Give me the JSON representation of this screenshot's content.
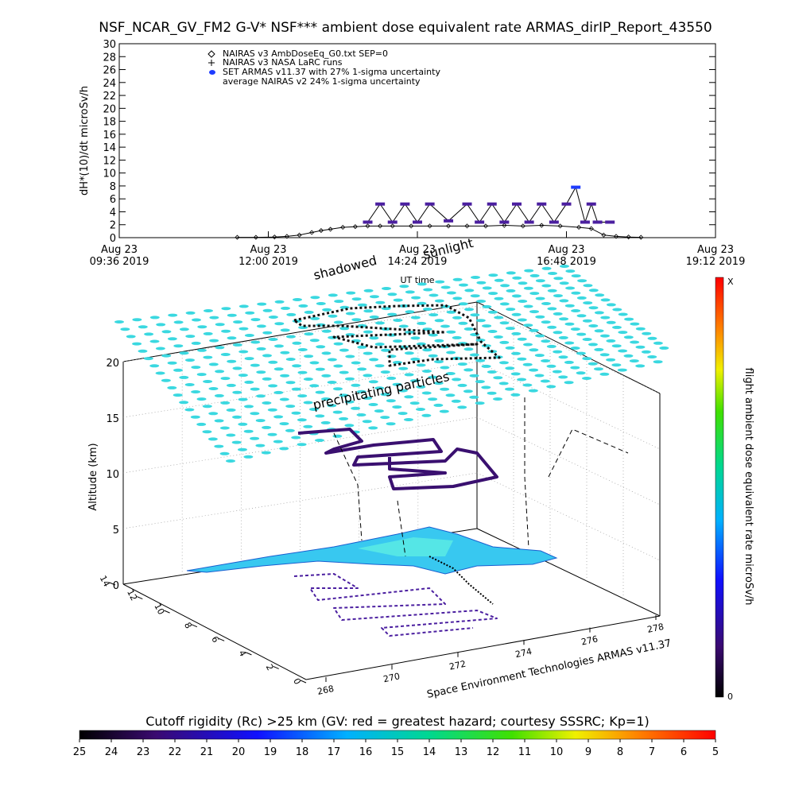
{
  "title": "NSF_NCAR_GV_FM2 G-V* NSF*** ambient dose equivalent rate ARMAS_dirIP_Report_43550",
  "colors": {
    "armas_marker": "#4b1fa0",
    "armas_high": "#1e3cff",
    "nairas_line": "#000000",
    "cyan_layer": "#3ad8e0",
    "track_dark": "#22103a"
  },
  "chart_data": [
    {
      "type": "line",
      "panel": "time-series",
      "ylabel": "dH*(10)/dt microSv/h",
      "xlabel": "UT time",
      "ylim": [
        0,
        30
      ],
      "yticks": [
        0,
        2,
        4,
        6,
        8,
        10,
        12,
        14,
        16,
        18,
        20,
        22,
        24,
        26,
        28,
        30
      ],
      "xlim_hours": [
        9.6,
        19.2
      ],
      "xtick_lines": [
        [
          "Aug 23",
          "09:36 2019"
        ],
        [
          "Aug 23",
          "12:00 2019"
        ],
        [
          "Aug 23",
          "14:24 2019"
        ],
        [
          "Aug 23",
          "16:48 2019"
        ],
        [
          "Aug 23",
          "19:12 2019"
        ]
      ],
      "xtick_hours": [
        9.6,
        12.0,
        14.4,
        16.8,
        19.2
      ],
      "legend": [
        {
          "symbol": "diamond",
          "label": "NAIRAS v3 AmbDoseEq_G0.txt SEP=0"
        },
        {
          "symbol": "plus",
          "label": "NAIRAS v3 NASA LaRC runs"
        },
        {
          "symbol": "dot",
          "label": "SET ARMAS v11.37 with 27% 1-sigma uncertainty"
        },
        {
          "symbol": "none",
          "label": "average NAIRAS v2 24% 1-sigma uncertainty"
        }
      ],
      "series": [
        {
          "name": "NAIRAS v3 AmbDoseEq_G0.txt SEP=0",
          "x": [
            11.5,
            11.8,
            12.1,
            12.3,
            12.5,
            12.7,
            12.85,
            13.0,
            13.2,
            13.4,
            13.6,
            13.8,
            14.0,
            14.3,
            14.6,
            14.9,
            15.2,
            15.5,
            15.8,
            16.1,
            16.4,
            16.7,
            17.0,
            17.2,
            17.4,
            17.6,
            17.8,
            18.0
          ],
          "y": [
            0.05,
            0.05,
            0.1,
            0.2,
            0.4,
            0.8,
            1.1,
            1.3,
            1.6,
            1.7,
            1.8,
            1.8,
            1.8,
            1.8,
            1.8,
            1.8,
            1.8,
            1.8,
            1.9,
            1.8,
            1.9,
            1.8,
            1.6,
            1.4,
            0.4,
            0.2,
            0.1,
            0.05
          ]
        },
        {
          "name": "SET ARMAS v11.37 with 27% 1-sigma uncertainty",
          "x": [
            13.6,
            13.8,
            14.0,
            14.2,
            14.4,
            14.6,
            14.9,
            15.2,
            15.4,
            15.6,
            15.8,
            16.0,
            16.2,
            16.4,
            16.6,
            16.8,
            16.95,
            17.1,
            17.2,
            17.3,
            17.5
          ],
          "y": [
            2.4,
            5.2,
            2.4,
            5.2,
            2.4,
            5.2,
            2.6,
            5.2,
            2.4,
            5.2,
            2.4,
            5.2,
            2.4,
            5.2,
            2.4,
            5.2,
            7.8,
            2.4,
            5.2,
            2.4,
            2.4
          ]
        }
      ]
    },
    {
      "type": "scatter",
      "panel": "3d-track",
      "zlabel": "Altitude (km)",
      "zticks": [
        0,
        5,
        10,
        15,
        20
      ],
      "xticks_lon": [
        "268",
        "270",
        "272",
        "274",
        "276",
        "278"
      ],
      "yticks_lat": [
        "0",
        "2",
        "4",
        "6",
        "8",
        "10",
        "12",
        "14"
      ],
      "annotations": [
        "shadowed",
        "sunlight",
        "precipitating particles",
        "Space Environment Technologies ARMAS v11.37"
      ],
      "colorbar": {
        "label": "flight ambient dose equivalent rate microSv/h",
        "top_label": "X",
        "bottom_label": "0"
      }
    },
    {
      "type": "heatmap",
      "panel": "cutoff-rigidity-colorbar",
      "title": "Cutoff rigidity (Rc) >25 km (GV: red = greatest hazard; courtesy SSSRC; Kp=1)",
      "ticks": [
        "25",
        "24",
        "23",
        "22",
        "21",
        "20",
        "19",
        "18",
        "17",
        "16",
        "15",
        "14",
        "13",
        "12",
        "11",
        "10",
        "9",
        "8",
        "7",
        "6",
        "5"
      ]
    }
  ]
}
